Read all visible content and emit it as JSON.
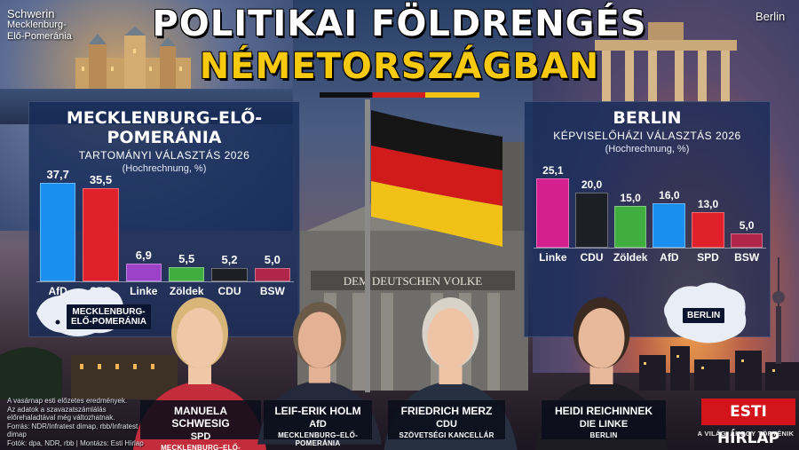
{
  "title": {
    "line1": "POLITIKAI FÖLDRENGÉS",
    "line2": "NÉMETORSZÁGBAN"
  },
  "corners": {
    "left_city": "Schwerin",
    "left_region_1": "Mecklenburg-",
    "left_region_2": "Elő-Pomeránia",
    "right_city": "Berlin"
  },
  "panels": {
    "left": {
      "heading": "MECKLENBURG–ELŐ-POMERÁNIA",
      "subheading": "TARTOMÁNYI VÁLASZTÁS 2026",
      "note": "(Hochrechnung, %)",
      "map_label_1": "MECKLENBURG-",
      "map_label_2": "ELŐ-POMERÁNIA"
    },
    "right": {
      "heading": "BERLIN",
      "subheading": "KÉPVISELŐHÁZI VÁLASZTÁS 2026",
      "note": "(Hochrechnung, %)",
      "map_label": "BERLIN"
    }
  },
  "chart_data": [
    {
      "type": "bar",
      "title": "MECKLENBURG–ELŐ-POMERÁNIA",
      "categories": [
        "AfD",
        "SPD",
        "Linke",
        "Zöldek",
        "CDU",
        "BSW"
      ],
      "values": [
        37.7,
        35.5,
        6.9,
        5.5,
        5.2,
        5.0
      ],
      "value_labels": [
        "37,7",
        "35,5",
        "6,9",
        "5,5",
        "5,2",
        "5,0"
      ],
      "colors": [
        "#1a8ff0",
        "#e0202a",
        "#9b42c8",
        "#3fae3f",
        "#1c1f26",
        "#b0264a"
      ],
      "ylim": [
        0,
        40
      ]
    },
    {
      "type": "bar",
      "title": "BERLIN",
      "categories": [
        "Linke",
        "CDU",
        "Zöldek",
        "AfD",
        "SPD",
        "BSW"
      ],
      "values": [
        25.1,
        20.0,
        15.0,
        16.0,
        13.0,
        5.0
      ],
      "value_labels": [
        "25,1",
        "20,0",
        "15,0",
        "16,0",
        "13,0",
        "5,0"
      ],
      "colors": [
        "#d4208f",
        "#1c1f26",
        "#3fae3f",
        "#1a8ff0",
        "#e0202a",
        "#b0264a"
      ],
      "ylim": [
        0,
        27
      ]
    }
  ],
  "people": [
    {
      "name": "MANUELA SCHWESIG",
      "party": "SPD",
      "role": "MECKLENBURG–ELŐ-POMERÁNIA"
    },
    {
      "name": "LEIF-ERIK HOLM",
      "party": "AfD",
      "role": "MECKLENBURG–ELŐ-POMERÁNIA"
    },
    {
      "name": "FRIEDRICH MERZ",
      "party": "CDU",
      "role": "SZÖVETSÉGI KANCELLÁR"
    },
    {
      "name": "HEIDI REICHINNEK",
      "party": "DIE LINKE",
      "role": "BERLIN"
    }
  ],
  "building_inscription": "DEM DEUTSCHEN VOLKE",
  "footnote": [
    "A vasárnap esti előzetes eredmények.",
    "Az adatok a szavazatszámlálás",
    "előrehaladtával még változhatnak.",
    "Forrás: NDR/Infratest dimap, rbb/Infratest dimap",
    "Fotók: dpa, NDR, rbb | Montázs: Esti Hírlap"
  ],
  "brand": {
    "name": "ESTI HÍRLAP",
    "tagline": "A VILÁG, AHOGY TÖRTÉNIK"
  },
  "colors": {
    "title_accent": "#f7c90f",
    "brand_red": "#d3141b",
    "panel_bg": "#162a58"
  }
}
